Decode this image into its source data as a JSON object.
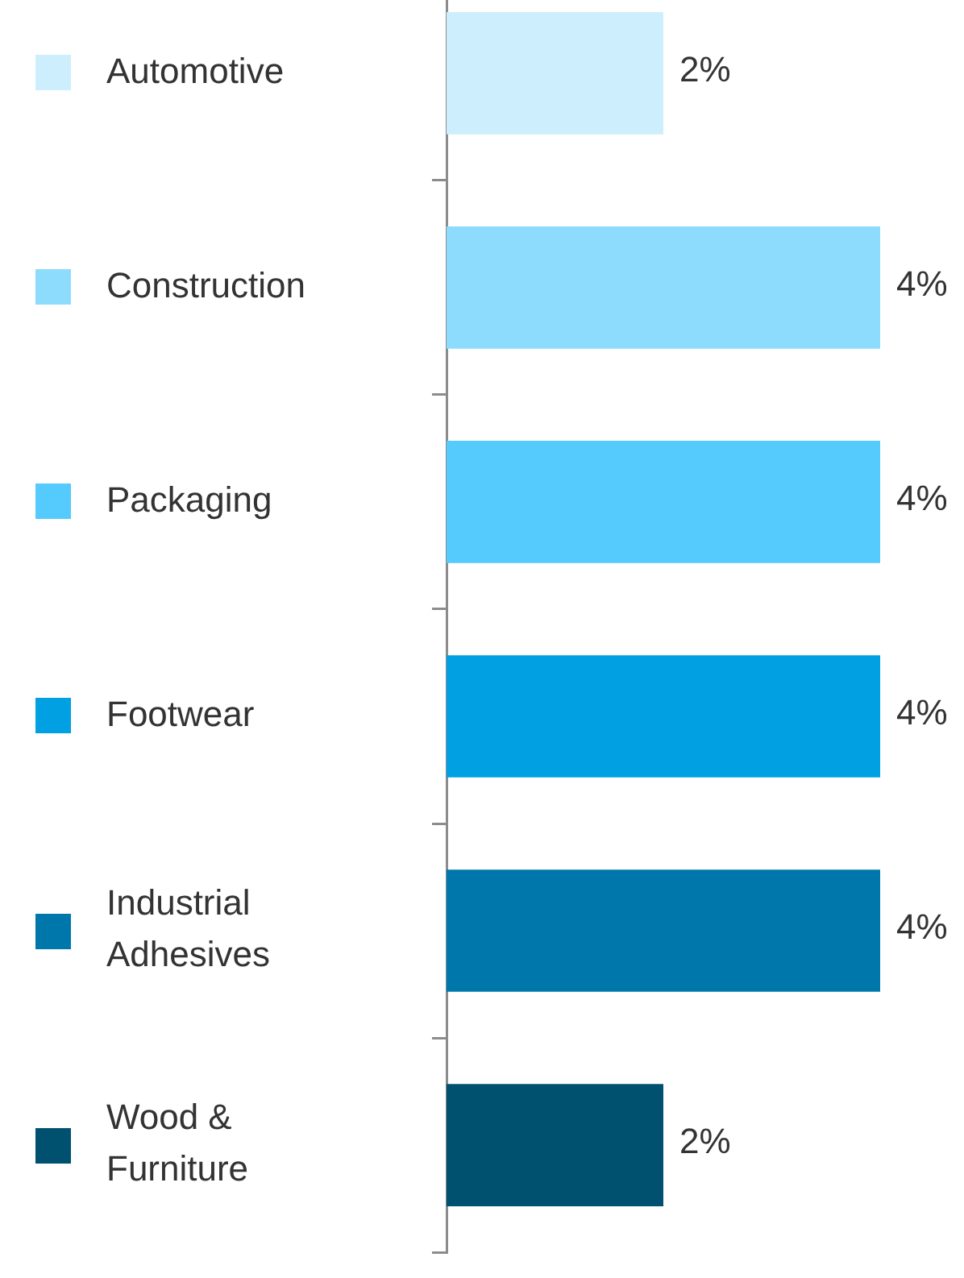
{
  "chart_data": {
    "type": "bar",
    "orientation": "horizontal",
    "categories": [
      "Automotive",
      "Construction",
      "Packaging",
      "Footwear",
      "Industrial Adhesives",
      "Wood & Furniture"
    ],
    "values": [
      2,
      4,
      4,
      4,
      4,
      2
    ],
    "colors": [
      "#cdeefd",
      "#8edcfd",
      "#55cbfd",
      "#00a0e3",
      "#0077aa",
      "#00506f"
    ],
    "value_labels": [
      "2%",
      "4%",
      "4%",
      "4%",
      "4%",
      "2%"
    ],
    "grid": false
  }
}
